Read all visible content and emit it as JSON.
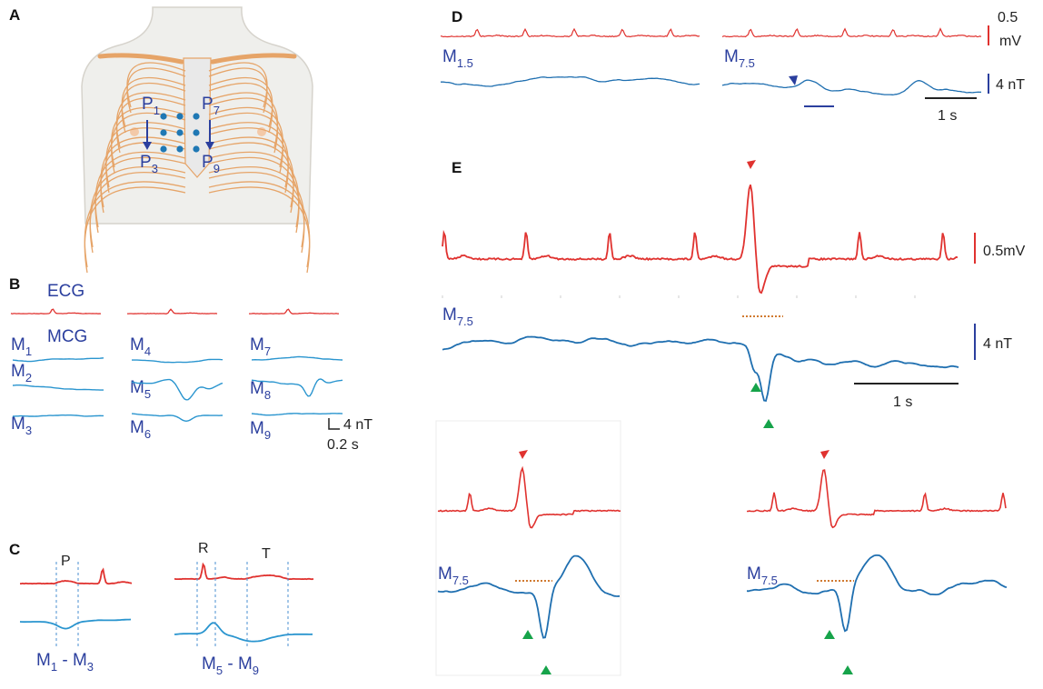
{
  "panel_labels": [
    "A",
    "B",
    "C",
    "D",
    "E"
  ],
  "A": {
    "leads": [
      {
        "base": "P",
        "sub": "1"
      },
      {
        "base": "P",
        "sub": "7"
      },
      {
        "base": "P",
        "sub": "3"
      },
      {
        "base": "P",
        "sub": "9"
      }
    ]
  },
  "B": {
    "ecg": "ECG",
    "mcg": "MCG",
    "channels": [
      {
        "base": "M",
        "sub": "1"
      },
      {
        "base": "M",
        "sub": "2"
      },
      {
        "base": "M",
        "sub": "3"
      },
      {
        "base": "M",
        "sub": "4"
      },
      {
        "base": "M",
        "sub": "5"
      },
      {
        "base": "M",
        "sub": "6"
      },
      {
        "base": "M",
        "sub": "7"
      },
      {
        "base": "M",
        "sub": "8"
      },
      {
        "base": "M",
        "sub": "9"
      }
    ],
    "scale_field": "4 nT",
    "scale_time": "0.2 s"
  },
  "C": {
    "wave_labels": [
      "P",
      "R",
      "T"
    ],
    "ranges": [
      {
        "a": "M",
        "a_sub": "1",
        "dash": " - ",
        "b": "M",
        "b_sub": "3"
      },
      {
        "a": "M",
        "a_sub": "5",
        "dash": " - ",
        "b": "M",
        "b_sub": "9"
      }
    ]
  },
  "D": {
    "channels": [
      {
        "base": "M",
        "sub": "1.5"
      },
      {
        "base": "M",
        "sub": "7.5"
      }
    ],
    "scale_voltage": [
      "0.5",
      "mV"
    ],
    "scale_field": "4 nT",
    "scale_time": "1 s"
  },
  "E": {
    "channels": [
      {
        "base": "M",
        "sub": "7.5"
      },
      {
        "base": "M",
        "sub": "7.5"
      },
      {
        "base": "M",
        "sub": "7.5"
      }
    ],
    "scale_voltage": "0.5mV",
    "scale_field": "4 nT",
    "scale_time": "1 s"
  }
}
